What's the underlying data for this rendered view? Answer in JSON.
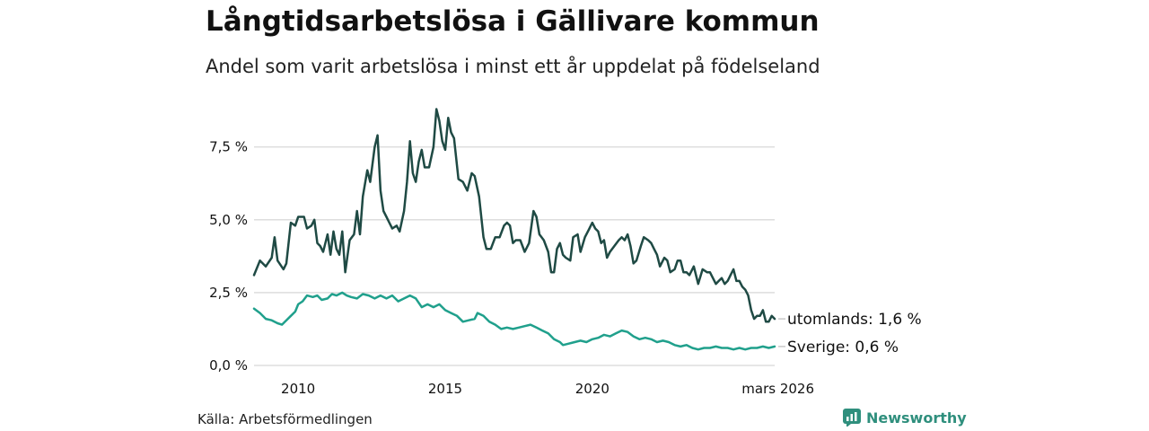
{
  "header": {
    "title": "Långtidsarbetslösa i Gällivare kommun",
    "subtitle": "Andel som varit arbetslösa i minst ett år uppdelat på födelseland"
  },
  "footer": {
    "source": "Källa: Arbetsförmedlingen",
    "brand": "Newsworthy"
  },
  "colors": {
    "utomlands": "#1f4a44",
    "sverige": "#20a08c",
    "grid": "#dddddd",
    "brand": "#2f8f7d"
  },
  "chart_data": {
    "type": "line",
    "title": "Långtidsarbetslösa i Gällivare kommun",
    "subtitle": "Andel som varit arbetslösa i minst ett år uppdelat på födelseland",
    "xlabel": "",
    "ylabel": "",
    "ylim": [
      0,
      9
    ],
    "xlim": [
      2008.5,
      2026.2
    ],
    "grid": true,
    "y_ticks": [
      {
        "value": 0,
        "label": "0,0 %"
      },
      {
        "value": 2.5,
        "label": "2,5 %"
      },
      {
        "value": 5,
        "label": "5,0 %"
      },
      {
        "value": 7.5,
        "label": "7,5 %"
      }
    ],
    "x_ticks": [
      {
        "value": 2010,
        "label": "2010"
      },
      {
        "value": 2015,
        "label": "2015"
      },
      {
        "value": 2020,
        "label": "2020"
      },
      {
        "value": 2026.2,
        "label": "mars 2026"
      }
    ],
    "series": [
      {
        "name": "utomlands",
        "color": "#1f4a44",
        "end_label": "utomlands: 1,6 %",
        "points": [
          [
            2008.5,
            3.1
          ],
          [
            2008.7,
            3.6
          ],
          [
            2008.9,
            3.4
          ],
          [
            2009.1,
            3.7
          ],
          [
            2009.2,
            4.4
          ],
          [
            2009.3,
            3.6
          ],
          [
            2009.5,
            3.3
          ],
          [
            2009.6,
            3.5
          ],
          [
            2009.75,
            4.9
          ],
          [
            2009.9,
            4.8
          ],
          [
            2010.0,
            5.1
          ],
          [
            2010.2,
            5.1
          ],
          [
            2010.3,
            4.7
          ],
          [
            2010.45,
            4.8
          ],
          [
            2010.55,
            5.0
          ],
          [
            2010.65,
            4.2
          ],
          [
            2010.75,
            4.1
          ],
          [
            2010.85,
            3.9
          ],
          [
            2011.0,
            4.5
          ],
          [
            2011.1,
            3.8
          ],
          [
            2011.2,
            4.6
          ],
          [
            2011.3,
            4.0
          ],
          [
            2011.4,
            3.8
          ],
          [
            2011.5,
            4.6
          ],
          [
            2011.6,
            3.2
          ],
          [
            2011.75,
            4.3
          ],
          [
            2011.9,
            4.5
          ],
          [
            2012.0,
            5.3
          ],
          [
            2012.1,
            4.5
          ],
          [
            2012.2,
            5.8
          ],
          [
            2012.35,
            6.7
          ],
          [
            2012.45,
            6.3
          ],
          [
            2012.6,
            7.5
          ],
          [
            2012.7,
            7.9
          ],
          [
            2012.8,
            6.0
          ],
          [
            2012.9,
            5.3
          ],
          [
            2013.0,
            5.1
          ],
          [
            2013.1,
            4.9
          ],
          [
            2013.2,
            4.7
          ],
          [
            2013.35,
            4.8
          ],
          [
            2013.45,
            4.6
          ],
          [
            2013.6,
            5.3
          ],
          [
            2013.7,
            6.3
          ],
          [
            2013.8,
            7.7
          ],
          [
            2013.9,
            6.6
          ],
          [
            2014.0,
            6.3
          ],
          [
            2014.1,
            7.0
          ],
          [
            2014.2,
            7.4
          ],
          [
            2014.3,
            6.8
          ],
          [
            2014.45,
            6.8
          ],
          [
            2014.6,
            7.5
          ],
          [
            2014.7,
            8.8
          ],
          [
            2014.8,
            8.4
          ],
          [
            2014.9,
            7.7
          ],
          [
            2015.0,
            7.4
          ],
          [
            2015.1,
            8.5
          ],
          [
            2015.2,
            8.0
          ],
          [
            2015.3,
            7.8
          ],
          [
            2015.45,
            6.4
          ],
          [
            2015.6,
            6.3
          ],
          [
            2015.75,
            6.0
          ],
          [
            2015.9,
            6.6
          ],
          [
            2016.0,
            6.5
          ],
          [
            2016.15,
            5.8
          ],
          [
            2016.3,
            4.4
          ],
          [
            2016.4,
            4.0
          ],
          [
            2016.55,
            4.0
          ],
          [
            2016.7,
            4.4
          ],
          [
            2016.85,
            4.4
          ],
          [
            2017.0,
            4.8
          ],
          [
            2017.1,
            4.9
          ],
          [
            2017.2,
            4.8
          ],
          [
            2017.3,
            4.2
          ],
          [
            2017.4,
            4.3
          ],
          [
            2017.55,
            4.3
          ],
          [
            2017.7,
            3.9
          ],
          [
            2017.85,
            4.2
          ],
          [
            2018.0,
            5.3
          ],
          [
            2018.1,
            5.1
          ],
          [
            2018.2,
            4.5
          ],
          [
            2018.35,
            4.3
          ],
          [
            2018.5,
            3.9
          ],
          [
            2018.6,
            3.2
          ],
          [
            2018.7,
            3.2
          ],
          [
            2018.8,
            4.0
          ],
          [
            2018.9,
            4.2
          ],
          [
            2019.0,
            3.8
          ],
          [
            2019.1,
            3.7
          ],
          [
            2019.25,
            3.6
          ],
          [
            2019.35,
            4.4
          ],
          [
            2019.5,
            4.5
          ],
          [
            2019.6,
            3.9
          ],
          [
            2019.75,
            4.4
          ],
          [
            2019.9,
            4.7
          ],
          [
            2020.0,
            4.9
          ],
          [
            2020.1,
            4.7
          ],
          [
            2020.2,
            4.6
          ],
          [
            2020.3,
            4.2
          ],
          [
            2020.4,
            4.3
          ],
          [
            2020.5,
            3.7
          ],
          [
            2020.6,
            3.9
          ],
          [
            2020.75,
            4.1
          ],
          [
            2020.9,
            4.3
          ],
          [
            2021.0,
            4.4
          ],
          [
            2021.1,
            4.3
          ],
          [
            2021.2,
            4.5
          ],
          [
            2021.3,
            4.1
          ],
          [
            2021.4,
            3.5
          ],
          [
            2021.5,
            3.6
          ],
          [
            2021.65,
            4.1
          ],
          [
            2021.75,
            4.4
          ],
          [
            2021.9,
            4.3
          ],
          [
            2022.0,
            4.2
          ],
          [
            2022.1,
            4.0
          ],
          [
            2022.2,
            3.8
          ],
          [
            2022.3,
            3.4
          ],
          [
            2022.45,
            3.7
          ],
          [
            2022.55,
            3.6
          ],
          [
            2022.65,
            3.2
          ],
          [
            2022.8,
            3.3
          ],
          [
            2022.9,
            3.6
          ],
          [
            2023.0,
            3.6
          ],
          [
            2023.1,
            3.2
          ],
          [
            2023.2,
            3.2
          ],
          [
            2023.3,
            3.1
          ],
          [
            2023.45,
            3.4
          ],
          [
            2023.6,
            2.8
          ],
          [
            2023.75,
            3.3
          ],
          [
            2023.9,
            3.2
          ],
          [
            2024.0,
            3.2
          ],
          [
            2024.1,
            3.0
          ],
          [
            2024.2,
            2.8
          ],
          [
            2024.3,
            2.9
          ],
          [
            2024.4,
            3.0
          ],
          [
            2024.5,
            2.8
          ],
          [
            2024.6,
            2.9
          ],
          [
            2024.7,
            3.1
          ],
          [
            2024.8,
            3.3
          ],
          [
            2024.9,
            2.9
          ],
          [
            2025.0,
            2.9
          ],
          [
            2025.1,
            2.7
          ],
          [
            2025.2,
            2.6
          ],
          [
            2025.3,
            2.4
          ],
          [
            2025.4,
            1.9
          ],
          [
            2025.5,
            1.6
          ],
          [
            2025.6,
            1.7
          ],
          [
            2025.7,
            1.7
          ],
          [
            2025.8,
            1.9
          ],
          [
            2025.9,
            1.5
          ],
          [
            2026.0,
            1.5
          ],
          [
            2026.1,
            1.7
          ],
          [
            2026.2,
            1.6
          ]
        ]
      },
      {
        "name": "Sverige",
        "color": "#20a08c",
        "end_label": "Sverige: 0,6 %",
        "points": [
          [
            2008.5,
            1.95
          ],
          [
            2008.7,
            1.8
          ],
          [
            2008.9,
            1.6
          ],
          [
            2009.1,
            1.55
          ],
          [
            2009.3,
            1.45
          ],
          [
            2009.45,
            1.4
          ],
          [
            2009.6,
            1.55
          ],
          [
            2009.75,
            1.7
          ],
          [
            2009.9,
            1.85
          ],
          [
            2010.0,
            2.1
          ],
          [
            2010.15,
            2.2
          ],
          [
            2010.3,
            2.4
          ],
          [
            2010.5,
            2.35
          ],
          [
            2010.65,
            2.4
          ],
          [
            2010.8,
            2.25
          ],
          [
            2011.0,
            2.3
          ],
          [
            2011.15,
            2.45
          ],
          [
            2011.3,
            2.4
          ],
          [
            2011.5,
            2.5
          ],
          [
            2011.65,
            2.4
          ],
          [
            2011.8,
            2.35
          ],
          [
            2012.0,
            2.3
          ],
          [
            2012.2,
            2.45
          ],
          [
            2012.4,
            2.4
          ],
          [
            2012.6,
            2.3
          ],
          [
            2012.8,
            2.4
          ],
          [
            2013.0,
            2.3
          ],
          [
            2013.2,
            2.4
          ],
          [
            2013.4,
            2.2
          ],
          [
            2013.6,
            2.3
          ],
          [
            2013.8,
            2.4
          ],
          [
            2014.0,
            2.3
          ],
          [
            2014.2,
            2.0
          ],
          [
            2014.4,
            2.1
          ],
          [
            2014.6,
            2.0
          ],
          [
            2014.8,
            2.1
          ],
          [
            2015.0,
            1.9
          ],
          [
            2015.2,
            1.8
          ],
          [
            2015.4,
            1.7
          ],
          [
            2015.6,
            1.5
          ],
          [
            2015.8,
            1.55
          ],
          [
            2016.0,
            1.6
          ],
          [
            2016.1,
            1.8
          ],
          [
            2016.3,
            1.7
          ],
          [
            2016.5,
            1.5
          ],
          [
            2016.7,
            1.4
          ],
          [
            2016.9,
            1.25
          ],
          [
            2017.1,
            1.3
          ],
          [
            2017.3,
            1.25
          ],
          [
            2017.5,
            1.3
          ],
          [
            2017.7,
            1.35
          ],
          [
            2017.9,
            1.4
          ],
          [
            2018.1,
            1.3
          ],
          [
            2018.3,
            1.2
          ],
          [
            2018.5,
            1.1
          ],
          [
            2018.7,
            0.9
          ],
          [
            2018.9,
            0.8
          ],
          [
            2019.0,
            0.7
          ],
          [
            2019.2,
            0.75
          ],
          [
            2019.4,
            0.8
          ],
          [
            2019.6,
            0.85
          ],
          [
            2019.8,
            0.8
          ],
          [
            2020.0,
            0.9
          ],
          [
            2020.2,
            0.95
          ],
          [
            2020.4,
            1.05
          ],
          [
            2020.6,
            1.0
          ],
          [
            2020.8,
            1.1
          ],
          [
            2021.0,
            1.2
          ],
          [
            2021.2,
            1.15
          ],
          [
            2021.4,
            1.0
          ],
          [
            2021.6,
            0.9
          ],
          [
            2021.8,
            0.95
          ],
          [
            2022.0,
            0.9
          ],
          [
            2022.2,
            0.8
          ],
          [
            2022.4,
            0.85
          ],
          [
            2022.6,
            0.8
          ],
          [
            2022.8,
            0.7
          ],
          [
            2023.0,
            0.65
          ],
          [
            2023.2,
            0.7
          ],
          [
            2023.4,
            0.6
          ],
          [
            2023.6,
            0.55
          ],
          [
            2023.8,
            0.6
          ],
          [
            2024.0,
            0.6
          ],
          [
            2024.2,
            0.65
          ],
          [
            2024.4,
            0.6
          ],
          [
            2024.6,
            0.6
          ],
          [
            2024.8,
            0.55
          ],
          [
            2025.0,
            0.6
          ],
          [
            2025.2,
            0.55
          ],
          [
            2025.4,
            0.6
          ],
          [
            2025.6,
            0.6
          ],
          [
            2025.8,
            0.65
          ],
          [
            2026.0,
            0.6
          ],
          [
            2026.2,
            0.65
          ]
        ]
      }
    ]
  }
}
